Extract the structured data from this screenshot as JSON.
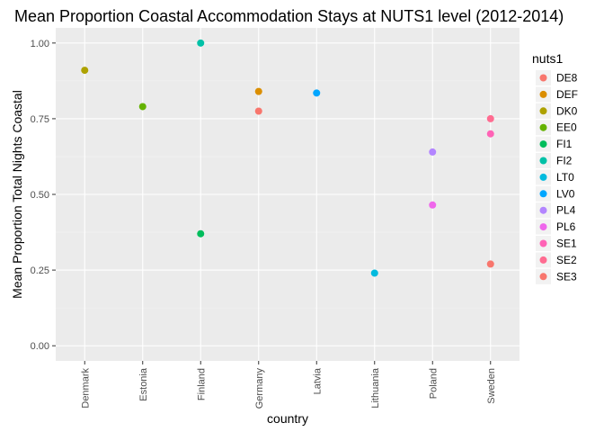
{
  "chart_data": {
    "type": "scatter",
    "title": "Mean Proportion Coastal Accommodation Stays at NUTS1 level (2012-2014)",
    "xlabel": "country",
    "ylabel": "Mean Proportion Total Nights Coastal",
    "categories": [
      "Denmark",
      "Estonia",
      "Finland",
      "Germany",
      "Latvia",
      "Lithuania",
      "Poland",
      "Sweden"
    ],
    "y_ticks": [
      0.0,
      0.25,
      0.5,
      0.75,
      1.0
    ],
    "y_tick_labels": [
      "0.00",
      "0.25",
      "0.50",
      "0.75",
      "1.00"
    ],
    "ylim": [
      -0.05,
      1.05
    ],
    "grid": true,
    "legend": {
      "title": "nuts1",
      "placement": "right",
      "entries": [
        {
          "name": "DE8",
          "color": "#F8766D"
        },
        {
          "name": "DEF",
          "color": "#DB8E00"
        },
        {
          "name": "DK0",
          "color": "#AEA200"
        },
        {
          "name": "EE0",
          "color": "#64B200"
        },
        {
          "name": "FI1",
          "color": "#00BD5C"
        },
        {
          "name": "FI2",
          "color": "#00C1A7"
        },
        {
          "name": "LT0",
          "color": "#00BADE"
        },
        {
          "name": "LV0",
          "color": "#00A6FF"
        },
        {
          "name": "PL4",
          "color": "#B385FF"
        },
        {
          "name": "PL6",
          "color": "#EF67EB"
        },
        {
          "name": "SE1",
          "color": "#FF63B6"
        },
        {
          "name": "SE2",
          "color": "#FF6C91"
        },
        {
          "name": "SE3",
          "color": "#F8766D"
        }
      ]
    },
    "points": [
      {
        "country": "Denmark",
        "nuts1": "DK0",
        "y": 0.91
      },
      {
        "country": "Estonia",
        "nuts1": "EE0",
        "y": 0.79
      },
      {
        "country": "Finland",
        "nuts1": "FI2",
        "y": 1.0
      },
      {
        "country": "Finland",
        "nuts1": "FI1",
        "y": 0.37
      },
      {
        "country": "Germany",
        "nuts1": "DEF",
        "y": 0.84
      },
      {
        "country": "Germany",
        "nuts1": "DE8",
        "y": 0.775
      },
      {
        "country": "Latvia",
        "nuts1": "LV0",
        "y": 0.835
      },
      {
        "country": "Lithuania",
        "nuts1": "LT0",
        "y": 0.24
      },
      {
        "country": "Poland",
        "nuts1": "PL4",
        "y": 0.64
      },
      {
        "country": "Poland",
        "nuts1": "PL6",
        "y": 0.465
      },
      {
        "country": "Sweden",
        "nuts1": "SE2",
        "y": 0.75
      },
      {
        "country": "Sweden",
        "nuts1": "SE1",
        "y": 0.7
      },
      {
        "country": "Sweden",
        "nuts1": "SE3",
        "y": 0.27
      }
    ],
    "colors": {
      "panel_background": "#EBEBEB",
      "legend_key_background": "#F2F2F2"
    }
  }
}
